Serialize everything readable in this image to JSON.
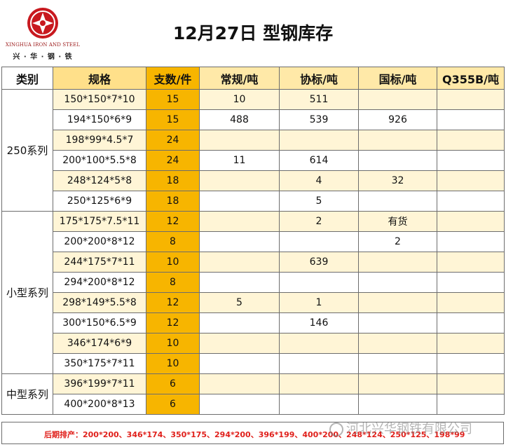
{
  "company": {
    "name_en": "XINGHUA IRON AND STEEL",
    "name_cn": "兴 · 华 · 钢 · 铁",
    "logo_color": "#c8191f"
  },
  "title": "12月27日  型钢库存",
  "columns": {
    "category": "类别",
    "spec": "规格",
    "count": "支数/件",
    "regular": "常规/吨",
    "assoc": "协标/吨",
    "national": "国标/吨",
    "q355b": "Q355B/吨"
  },
  "groups": [
    {
      "name": "250系列",
      "rows": [
        {
          "spec": "150*150*7*10",
          "count": "15",
          "regular": "10",
          "assoc": "511",
          "national": "",
          "q355b": ""
        },
        {
          "spec": "194*150*6*9",
          "count": "15",
          "regular": "488",
          "assoc": "539",
          "national": "926",
          "q355b": ""
        },
        {
          "spec": "198*99*4.5*7",
          "count": "24",
          "regular": "",
          "assoc": "",
          "national": "",
          "q355b": ""
        },
        {
          "spec": "200*100*5.5*8",
          "count": "24",
          "regular": "11",
          "assoc": "614",
          "national": "",
          "q355b": ""
        },
        {
          "spec": "248*124*5*8",
          "count": "18",
          "regular": "",
          "assoc": "4",
          "national": "32",
          "q355b": ""
        },
        {
          "spec": "250*125*6*9",
          "count": "18",
          "regular": "",
          "assoc": "5",
          "national": "",
          "q355b": ""
        }
      ]
    },
    {
      "name": "小型系列",
      "rows": [
        {
          "spec": "175*175*7.5*11",
          "count": "12",
          "regular": "",
          "assoc": "2",
          "national": "有货",
          "q355b": ""
        },
        {
          "spec": "200*200*8*12",
          "count": "8",
          "regular": "",
          "assoc": "",
          "national": "2",
          "q355b": ""
        },
        {
          "spec": "244*175*7*11",
          "count": "10",
          "regular": "",
          "assoc": "639",
          "national": "",
          "q355b": ""
        },
        {
          "spec": "294*200*8*12",
          "count": "8",
          "regular": "",
          "assoc": "",
          "national": "",
          "q355b": ""
        },
        {
          "spec": "298*149*5.5*8",
          "count": "12",
          "regular": "5",
          "assoc": "1",
          "national": "",
          "q355b": ""
        },
        {
          "spec": "300*150*6.5*9",
          "count": "12",
          "regular": "",
          "assoc": "146",
          "national": "",
          "q355b": ""
        },
        {
          "spec": "346*174*6*9",
          "count": "10",
          "regular": "",
          "assoc": "",
          "national": "",
          "q355b": ""
        },
        {
          "spec": "350*175*7*11",
          "count": "10",
          "regular": "",
          "assoc": "",
          "national": "",
          "q355b": ""
        }
      ]
    },
    {
      "name": "中型系列",
      "rows": [
        {
          "spec": "396*199*7*11",
          "count": "6",
          "regular": "",
          "assoc": "",
          "national": "",
          "q355b": ""
        },
        {
          "spec": "400*200*8*13",
          "count": "6",
          "regular": "",
          "assoc": "",
          "national": "",
          "q355b": ""
        }
      ]
    }
  ],
  "footer": "后期排产：200*200、346*174、350*175、294*200、396*199、400*200、248*124、250*125、198*99",
  "watermark": "河北兴华钢铁有限公司",
  "colors": {
    "header_spec": "#ffe08a",
    "count_column": "#f7b500",
    "row_alt": "#fff5d6",
    "footer_text": "#e0201b"
  }
}
